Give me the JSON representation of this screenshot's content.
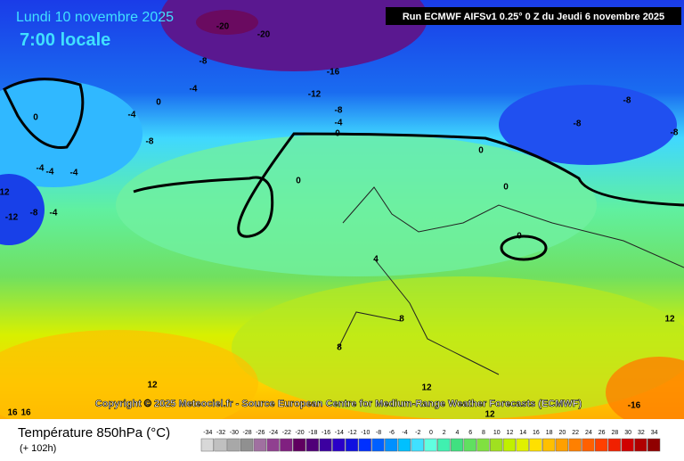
{
  "header": {
    "date": "Lundi 10 novembre 2025",
    "time": "7:00 locale",
    "run": "Run ECMWF AIFSv1 0.25° 0 Z du Jeudi 6 novembre 2025"
  },
  "map": {
    "copyright": "Copyright © 2025 Meteociel.fr - Source European Centre for Medium-Range Weather Forecasts (ECMWF)",
    "contour_labels": [
      -20,
      -20,
      -8,
      -16,
      -4,
      -12,
      0,
      -4,
      -8,
      -4,
      0,
      -8,
      0,
      -4,
      -4,
      -4,
      12,
      -12,
      -8,
      -4,
      0,
      0,
      0,
      0,
      4,
      8,
      8,
      12,
      12,
      12,
      12,
      -16,
      16,
      16,
      -8,
      -8,
      -8
    ]
  },
  "legend": {
    "title": "Température 850hPa (°C)",
    "lead": "(+ 102h)",
    "values": [
      -34,
      -32,
      -30,
      -28,
      -26,
      -24,
      -22,
      -20,
      -18,
      -16,
      -14,
      -12,
      -10,
      -8,
      -6,
      -4,
      -2,
      0,
      2,
      4,
      6,
      8,
      10,
      12,
      14,
      16,
      18,
      20,
      22,
      24,
      26,
      28,
      30,
      32,
      34
    ],
    "colors": [
      "#d8d8d8",
      "#c0c0c0",
      "#a8a8a8",
      "#909090",
      "#a070a0",
      "#904090",
      "#802080",
      "#600060",
      "#500078",
      "#3c00a0",
      "#2a00c8",
      "#1010e0",
      "#0030ff",
      "#0060ff",
      "#0090ff",
      "#00c0ff",
      "#40e0ff",
      "#60ffe0",
      "#40f0b0",
      "#40e080",
      "#60e060",
      "#80e040",
      "#a0e020",
      "#c0f000",
      "#e0f000",
      "#ffe000",
      "#ffc000",
      "#ffa000",
      "#ff8000",
      "#ff6000",
      "#ff4000",
      "#f02000",
      "#d00000",
      "#b00000",
      "#900000"
    ]
  }
}
